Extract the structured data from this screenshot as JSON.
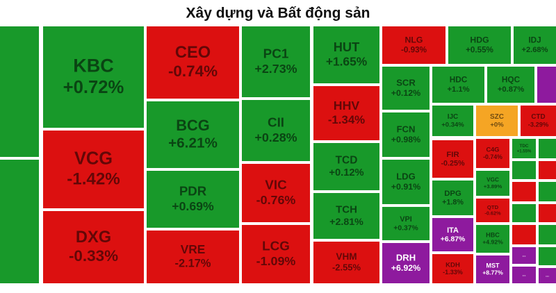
{
  "chart_data": {
    "type": "treemap",
    "title": "Xây dựng và Bất động sản",
    "categories": [
      "KBC",
      "VCG",
      "DXG",
      "CEO",
      "BCG",
      "PDR",
      "VRE",
      "PC1",
      "CII",
      "VIC",
      "LCG",
      "HUT",
      "HHV",
      "TCD",
      "TCH",
      "VHM",
      "NLG",
      "SCR",
      "FCN",
      "LDG",
      "VPI",
      "DRH",
      "HDG",
      "IDJ",
      "HDC",
      "HQC",
      "IJC",
      "SZC",
      "CTD",
      "FIR",
      "DPG",
      "ITA",
      "KDH",
      "C4G",
      "VGC",
      "QTD",
      "HBC",
      "MST",
      "TDC",
      "...",
      "...",
      "..."
    ],
    "values": [
      0.72,
      -1.42,
      -0.33,
      -0.74,
      6.21,
      0.69,
      -2.17,
      2.73,
      0.28,
      -0.76,
      -1.09,
      1.65,
      -1.34,
      0.12,
      2.81,
      -2.55,
      -0.93,
      0.12,
      0.98,
      0.91,
      0.37,
      6.92,
      0.55,
      2.68,
      1.1,
      0.87,
      0.34,
      0,
      -3.29,
      -0.25,
      1.8,
      6.87,
      -1.33,
      -0.74,
      3.89,
      -0.62,
      4.92,
      8.77,
      1.55,
      null,
      null,
      null
    ],
    "value_labels": [
      "+0.72%",
      "-1.42%",
      "-0.33%",
      "-0.74%",
      "+6.21%",
      "+0.69%",
      "-2.17%",
      "+2.73%",
      "+0.28%",
      "-0.76%",
      "-1.09%",
      "+1.65%",
      "-1.34%",
      "+0.12%",
      "+2.81%",
      "-2.55%",
      "-0.93%",
      "+0.12%",
      "+0.98%",
      "+0.91%",
      "+0.37%",
      "+6.92%",
      "+0.55%",
      "+2.68%",
      "+1.1%",
      "+0.87%",
      "+0.34%",
      "+0%",
      "-3.29%",
      "-0.25%",
      "+1.8%",
      "+6.87%",
      "-1.33%",
      "-0.74%",
      "+3.89%",
      "-0.62%",
      "+4.92%",
      "+8.77%",
      "+1.55%",
      null,
      null,
      null
    ],
    "colors": [
      "#18992a",
      "#dc1010",
      "#dc1010",
      "#dc1010",
      "#18992a",
      "#18992a",
      "#dc1010",
      "#18992a",
      "#18992a",
      "#dc1010",
      "#dc1010",
      "#18992a",
      "#dc1010",
      "#18992a",
      "#18992a",
      "#dc1010",
      "#dc1010",
      "#18992a",
      "#18992a",
      "#18992a",
      "#18992a",
      "#8e1a9e",
      "#18992a",
      "#18992a",
      "#18992a",
      "#18992a",
      "#18992a",
      "#f5a524",
      "#dc1010",
      "#dc1010",
      "#18992a",
      "#8e1a9e",
      "#dc1010",
      "#dc1010",
      "#18992a",
      "#dc1010",
      "#18992a",
      "#8e1a9e",
      "#18992a",
      "#8e1a9e",
      "#8e1a9e",
      "#8e1a9e"
    ]
  }
}
